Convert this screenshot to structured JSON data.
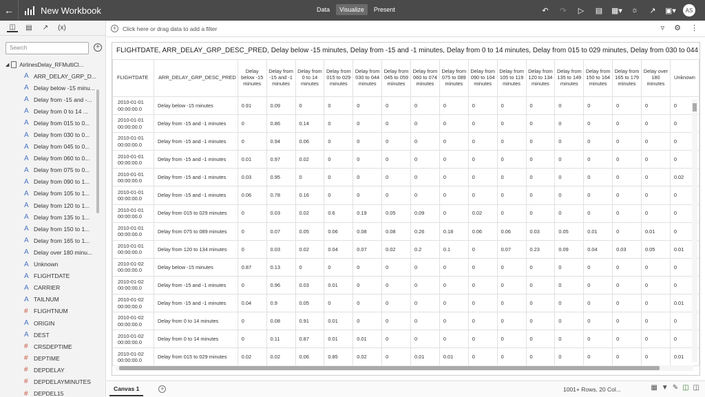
{
  "app": {
    "title": "New Workbook",
    "tabs": [
      "Data",
      "Visualize",
      "Present"
    ],
    "active_tab": "Visualize",
    "user_initials": "AS"
  },
  "left_pane": {
    "search_placeholder": "Search",
    "root": "AirlinesDelay_RFMultiCl...",
    "items": [
      {
        "label": "ARR_DELAY_GRP_D...",
        "type": "A"
      },
      {
        "label": "Delay below -15 minu...",
        "type": "A"
      },
      {
        "label": "Delay from -15 and -...",
        "type": "A"
      },
      {
        "label": "Delay from 0 to 14 ...",
        "type": "A"
      },
      {
        "label": "Delay from 015 to 0...",
        "type": "A"
      },
      {
        "label": "Delay from 030 to 0...",
        "type": "A"
      },
      {
        "label": "Delay from 045 to 0...",
        "type": "A"
      },
      {
        "label": "Delay from 060 to 0...",
        "type": "A"
      },
      {
        "label": "Delay from 075 to 0...",
        "type": "A"
      },
      {
        "label": "Delay from 090 to 1...",
        "type": "A"
      },
      {
        "label": "Delay from 105 to 1...",
        "type": "A"
      },
      {
        "label": "Delay from 120 to 1...",
        "type": "A"
      },
      {
        "label": "Delay from 135 to 1...",
        "type": "A"
      },
      {
        "label": "Delay from 150 to 1...",
        "type": "A"
      },
      {
        "label": "Delay from 165 to 1...",
        "type": "A"
      },
      {
        "label": "Delay over 180 minu...",
        "type": "A"
      },
      {
        "label": "Unknown",
        "type": "A"
      },
      {
        "label": "FLIGHTDATE",
        "type": "A"
      },
      {
        "label": "CARRIER",
        "type": "A"
      },
      {
        "label": "TAILNUM",
        "type": "A"
      },
      {
        "label": "FLIGHTNUM",
        "type": "#"
      },
      {
        "label": "ORIGIN",
        "type": "A"
      },
      {
        "label": "DEST",
        "type": "A"
      },
      {
        "label": "CRSDEPTIME",
        "type": "#"
      },
      {
        "label": "DEPTIME",
        "type": "#"
      },
      {
        "label": "DEPDELAY",
        "type": "#"
      },
      {
        "label": "DEPDELAYMINUTES",
        "type": "#"
      },
      {
        "label": "DEPDEL15",
        "type": "#"
      }
    ]
  },
  "filter_bar": {
    "placeholder": "Click here or drag data to add a filter"
  },
  "viz": {
    "title": "FLIGHTDATE, ARR_DELAY_GRP_DESC_PRED, Delay below -15 minutes, Delay from -15 and -1 minutes, Delay from 0 to 14 minutes, Delay from 015 to 029 minutes, Delay from 030 to 044 minute...",
    "columns": [
      "FLIGHTDATE",
      "ARR_DELAY_GRP_DESC_PRED",
      "Delay below -15 minutes",
      "Delay from -15 and -1 minutes",
      "Delay from 0 to 14 minutes",
      "Delay from 015 to 029 minutes",
      "Delay from 030 to 044 minutes",
      "Delay from 045 to 059 minutes",
      "Delay from 060 to 074 minutes",
      "Delay from 075 to 089 minutes",
      "Delay from 090 to 104 minutes",
      "Delay from 105 to 119 minutes",
      "Delay from 120 to 134 minutes",
      "Delay from 135 to 149 minutes",
      "Delay from 150 to 164 minutes",
      "Delay from 165 to 179 minutes",
      "Delay over 180 minutes",
      "Unknown"
    ],
    "rows": [
      [
        "2010-01-01 00:00:00.0",
        "Delay below -15 minutes",
        "0.91",
        "0.09",
        "0",
        "0",
        "0",
        "0",
        "0",
        "0",
        "0",
        "0",
        "0",
        "0",
        "0",
        "0",
        "0",
        "0"
      ],
      [
        "2010-01-01 00:00:00.0",
        "Delay from -15 and -1 minutes",
        "0",
        "0.86",
        "0.14",
        "0",
        "0",
        "0",
        "0",
        "0",
        "0",
        "0",
        "0",
        "0",
        "0",
        "0",
        "0",
        "0"
      ],
      [
        "2010-01-01 00:00:00.0",
        "Delay from -15 and -1 minutes",
        "0",
        "0.94",
        "0.06",
        "0",
        "0",
        "0",
        "0",
        "0",
        "0",
        "0",
        "0",
        "0",
        "0",
        "0",
        "0",
        "0"
      ],
      [
        "2010-01-01 00:00:00.0",
        "Delay from -15 and -1 minutes",
        "0.01",
        "0.97",
        "0.02",
        "0",
        "0",
        "0",
        "0",
        "0",
        "0",
        "0",
        "0",
        "0",
        "0",
        "0",
        "0",
        "0"
      ],
      [
        "2010-01-01 00:00:00.0",
        "Delay from -15 and -1 minutes",
        "0.03",
        "0.95",
        "0",
        "0",
        "0",
        "0",
        "0",
        "0",
        "0",
        "0",
        "0",
        "0",
        "0",
        "0",
        "0",
        "0.02"
      ],
      [
        "2010-01-01 00:00:00.0",
        "Delay from -15 and -1 minutes",
        "0.06",
        "0.78",
        "0.16",
        "0",
        "0",
        "0",
        "0",
        "0",
        "0",
        "0",
        "0",
        "0",
        "0",
        "0",
        "0",
        "0"
      ],
      [
        "2010-01-01 00:00:00.0",
        "Delay from 015 to 029 minutes",
        "0",
        "0.03",
        "0.02",
        "0.6",
        "0.19",
        "0.05",
        "0.09",
        "0",
        "0.02",
        "0",
        "0",
        "0",
        "0",
        "0",
        "0",
        "0"
      ],
      [
        "2010-01-01 00:00:00.0",
        "Delay from 075 to 089 minutes",
        "0",
        "0.07",
        "0.05",
        "0.06",
        "0.08",
        "0.08",
        "0.26",
        "0.18",
        "0.06",
        "0.06",
        "0.03",
        "0.05",
        "0.01",
        "0",
        "0.01",
        "0"
      ],
      [
        "2010-01-01 00:00:00.0",
        "Delay from 120 to 134 minutes",
        "0",
        "0.03",
        "0.02",
        "0.04",
        "0.07",
        "0.02",
        "0.2",
        "0.1",
        "0",
        "0.07",
        "0.23",
        "0.09",
        "0.04",
        "0.03",
        "0.05",
        "0.01"
      ],
      [
        "2010-01-02 00:00:00.0",
        "Delay below -15 minutes",
        "0.87",
        "0.13",
        "0",
        "0",
        "0",
        "0",
        "0",
        "0",
        "0",
        "0",
        "0",
        "0",
        "0",
        "0",
        "0",
        "0"
      ],
      [
        "2010-01-02 00:00:00.0",
        "Delay from -15 and -1 minutes",
        "0",
        "0.96",
        "0.03",
        "0.01",
        "0",
        "0",
        "0",
        "0",
        "0",
        "0",
        "0",
        "0",
        "0",
        "0",
        "0",
        "0"
      ],
      [
        "2010-01-02 00:00:00.0",
        "Delay from -15 and -1 minutes",
        "0.04",
        "0.9",
        "0.05",
        "0",
        "0",
        "0",
        "0",
        "0",
        "0",
        "0",
        "0",
        "0",
        "0",
        "0",
        "0",
        "0.01"
      ],
      [
        "2010-01-02 00:00:00.0",
        "Delay from 0 to 14 minutes",
        "0",
        "0.08",
        "0.91",
        "0.01",
        "0",
        "0",
        "0",
        "0",
        "0",
        "0",
        "0",
        "0",
        "0",
        "0",
        "0",
        "0"
      ],
      [
        "2010-01-02 00:00:00.0",
        "Delay from 0 to 14 minutes",
        "0",
        "0.11",
        "0.87",
        "0.01",
        "0.01",
        "0",
        "0",
        "0",
        "0",
        "0",
        "0",
        "0",
        "0",
        "0",
        "0",
        "0"
      ],
      [
        "2010-01-02 00:00:00.0",
        "Delay from 015 to 029 minutes",
        "0.02",
        "0.02",
        "0.06",
        "0.85",
        "0.02",
        "0",
        "0.01",
        "0.01",
        "0",
        "0",
        "0",
        "0",
        "0",
        "0",
        "0",
        "0.01"
      ]
    ]
  },
  "bottom_bar": {
    "canvas_tab": "Canvas 1",
    "status": "1001+ Rows, 20 Col..."
  },
  "colors": {
    "topbar": "#4a4a4a",
    "attribute_icon": "#4a73c4",
    "measure_icon": "#c8553d"
  }
}
